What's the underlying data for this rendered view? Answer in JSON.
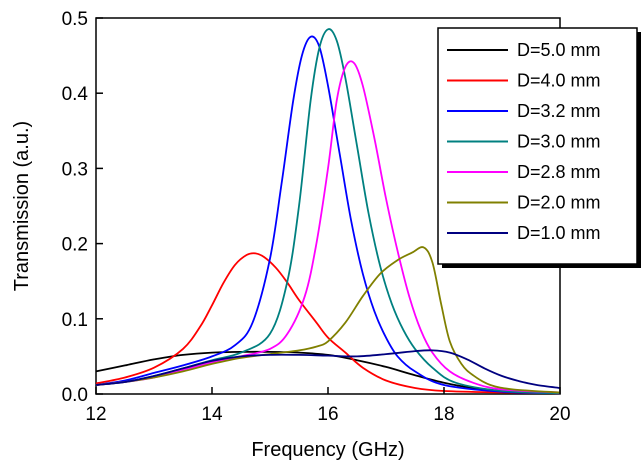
{
  "chart_data": {
    "type": "line",
    "xlabel": "Frequency (GHz)",
    "ylabel": "Transmission (a.u.)",
    "xlim": [
      12,
      20
    ],
    "ylim": [
      0,
      0.5
    ],
    "xticks": [
      12,
      14,
      16,
      18,
      20
    ],
    "xtick_labels": [
      "12",
      "14",
      "16",
      "18",
      "20"
    ],
    "yticks": [
      0.0,
      0.1,
      0.2,
      0.3,
      0.4,
      0.5
    ],
    "ytick_labels": [
      "0.0",
      "0.1",
      "0.2",
      "0.3",
      "0.4",
      "0.5"
    ],
    "grid": false,
    "legend_position": "top-right",
    "series": [
      {
        "name": "D=5.0 mm",
        "color": "#000000",
        "x": [
          12.0,
          12.5,
          13.0,
          13.5,
          14.0,
          14.5,
          15.0,
          15.5,
          16.0,
          16.5,
          17.0,
          17.5,
          18.0,
          18.5,
          19.0,
          19.5,
          20.0
        ],
        "y": [
          0.03,
          0.038,
          0.046,
          0.052,
          0.055,
          0.056,
          0.056,
          0.055,
          0.052,
          0.045,
          0.036,
          0.025,
          0.015,
          0.008,
          0.004,
          0.002,
          0.001
        ]
      },
      {
        "name": "D=4.0 mm",
        "color": "#ff0000",
        "x": [
          12.0,
          12.5,
          13.0,
          13.5,
          13.8,
          14.0,
          14.2,
          14.4,
          14.6,
          14.75,
          14.9,
          15.1,
          15.3,
          15.5,
          15.8,
          16.0,
          16.3,
          16.6,
          17.0,
          17.5,
          18.0,
          19.0,
          20.0
        ],
        "y": [
          0.014,
          0.022,
          0.035,
          0.06,
          0.09,
          0.118,
          0.148,
          0.172,
          0.185,
          0.187,
          0.182,
          0.168,
          0.148,
          0.125,
          0.095,
          0.075,
          0.055,
          0.035,
          0.018,
          0.008,
          0.004,
          0.002,
          0.001
        ]
      },
      {
        "name": "D=3.2 mm",
        "color": "#0000ff",
        "x": [
          12.0,
          12.5,
          13.0,
          13.5,
          14.0,
          14.4,
          14.7,
          15.0,
          15.2,
          15.4,
          15.55,
          15.7,
          15.85,
          16.0,
          16.2,
          16.4,
          16.6,
          16.8,
          17.0,
          17.2,
          17.5,
          18.0,
          19.0,
          20.0
        ],
        "y": [
          0.012,
          0.018,
          0.028,
          0.038,
          0.05,
          0.065,
          0.095,
          0.18,
          0.28,
          0.39,
          0.45,
          0.475,
          0.462,
          0.41,
          0.32,
          0.23,
          0.16,
          0.11,
          0.075,
          0.05,
          0.03,
          0.012,
          0.003,
          0.001
        ]
      },
      {
        "name": "D=3.0 mm",
        "color": "#008080",
        "x": [
          12.0,
          12.5,
          13.0,
          13.5,
          14.0,
          14.5,
          15.0,
          15.3,
          15.5,
          15.7,
          15.85,
          16.0,
          16.15,
          16.3,
          16.5,
          16.7,
          16.9,
          17.1,
          17.3,
          17.5,
          17.8,
          18.2,
          19.0,
          20.0
        ],
        "y": [
          0.012,
          0.016,
          0.024,
          0.034,
          0.045,
          0.055,
          0.08,
          0.15,
          0.25,
          0.39,
          0.46,
          0.485,
          0.47,
          0.42,
          0.33,
          0.24,
          0.17,
          0.12,
          0.085,
          0.06,
          0.035,
          0.015,
          0.004,
          0.001
        ]
      },
      {
        "name": "D=2.8 mm",
        "color": "#ff00ff",
        "x": [
          12.0,
          12.5,
          13.0,
          13.5,
          14.0,
          14.5,
          15.0,
          15.3,
          15.6,
          15.8,
          16.0,
          16.15,
          16.3,
          16.45,
          16.6,
          16.8,
          17.0,
          17.2,
          17.4,
          17.6,
          17.8,
          18.1,
          18.5,
          19.0,
          20.0
        ],
        "y": [
          0.012,
          0.016,
          0.022,
          0.032,
          0.042,
          0.05,
          0.06,
          0.08,
          0.13,
          0.2,
          0.3,
          0.39,
          0.435,
          0.44,
          0.41,
          0.34,
          0.26,
          0.19,
          0.13,
          0.085,
          0.055,
          0.03,
          0.015,
          0.006,
          0.002
        ]
      },
      {
        "name": "D=2.0 mm",
        "color": "#808000",
        "x": [
          12.0,
          12.5,
          13.0,
          13.5,
          14.0,
          14.5,
          15.0,
          15.5,
          15.8,
          16.0,
          16.3,
          16.6,
          16.9,
          17.2,
          17.45,
          17.65,
          17.8,
          17.95,
          18.1,
          18.3,
          18.5,
          18.8,
          19.2,
          20.0
        ],
        "y": [
          0.012,
          0.016,
          0.022,
          0.03,
          0.04,
          0.048,
          0.053,
          0.058,
          0.063,
          0.07,
          0.095,
          0.13,
          0.16,
          0.178,
          0.188,
          0.195,
          0.175,
          0.12,
          0.07,
          0.04,
          0.025,
          0.012,
          0.006,
          0.002
        ]
      },
      {
        "name": "D=1.0 mm",
        "color": "#000080",
        "x": [
          12.0,
          12.5,
          13.0,
          13.5,
          14.0,
          14.5,
          15.0,
          15.5,
          16.0,
          16.5,
          17.0,
          17.5,
          17.8,
          18.1,
          18.4,
          18.7,
          19.0,
          19.3,
          19.6,
          20.0
        ],
        "y": [
          0.012,
          0.016,
          0.024,
          0.034,
          0.044,
          0.05,
          0.052,
          0.052,
          0.051,
          0.05,
          0.053,
          0.057,
          0.058,
          0.055,
          0.046,
          0.034,
          0.024,
          0.017,
          0.012,
          0.008
        ]
      }
    ]
  }
}
